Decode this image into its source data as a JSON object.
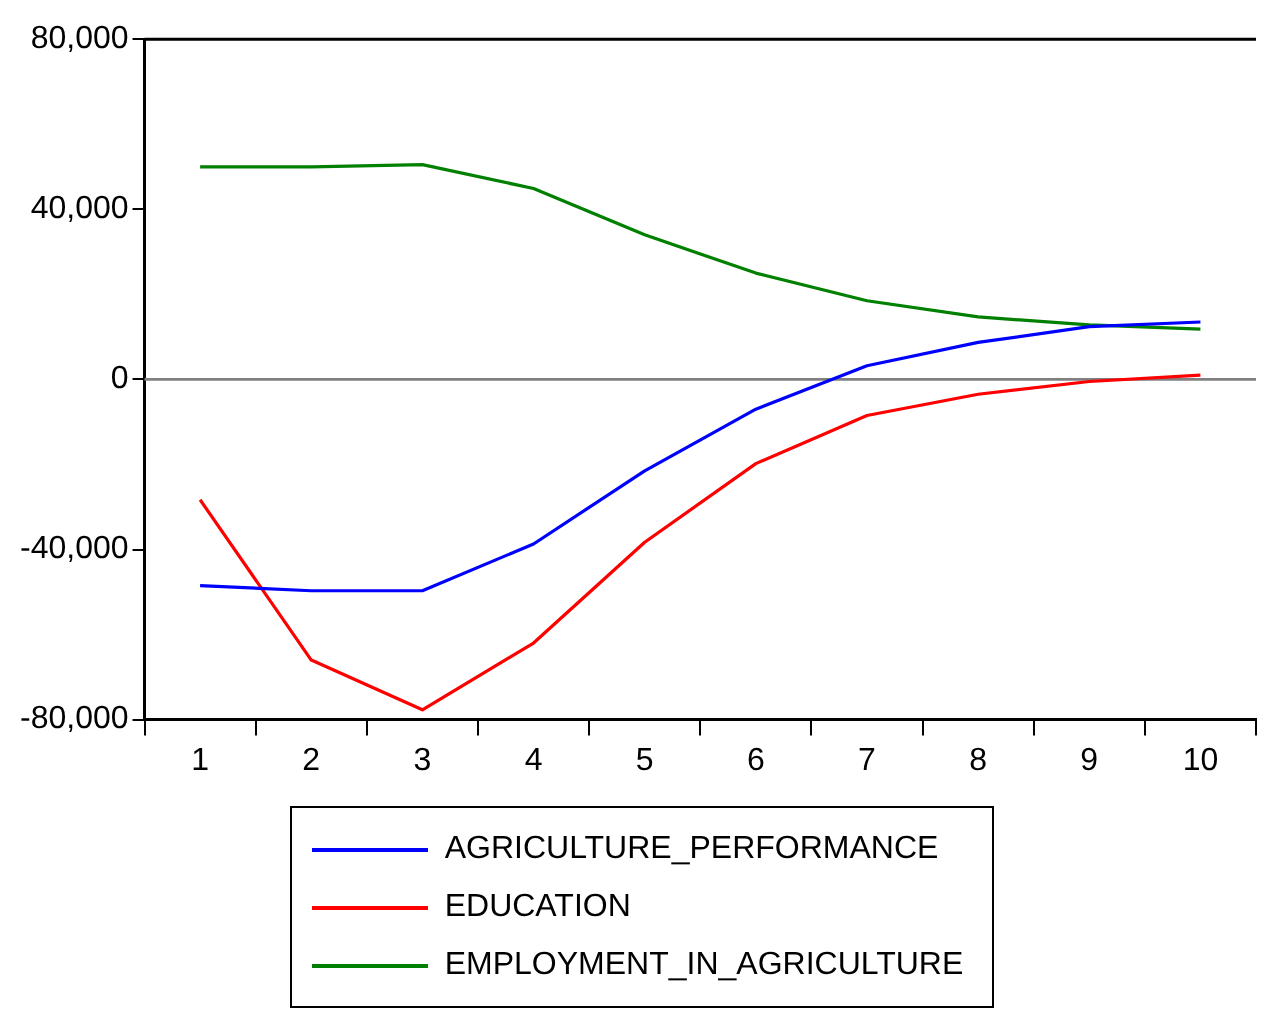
{
  "chart_data": {
    "type": "line",
    "categories": [
      "1",
      "2",
      "3",
      "4",
      "5",
      "6",
      "7",
      "8",
      "9",
      "10"
    ],
    "series": [
      {
        "name": "AGRICULTURE_PERFORMANCE",
        "color": "#0000ff",
        "values": [
          -48500,
          -49700,
          -49700,
          -38700,
          -21500,
          -7000,
          3200,
          8700,
          12400,
          13500
        ]
      },
      {
        "name": "EDUCATION",
        "color": "#ff0000",
        "values": [
          -28300,
          -66000,
          -77700,
          -62000,
          -38300,
          -19800,
          -8500,
          -3500,
          -500,
          1000
        ]
      },
      {
        "name": "EMPLOYMENT_IN_AGRICULTURE",
        "color": "#008000",
        "values": [
          50000,
          50000,
          50500,
          44900,
          34000,
          25000,
          18500,
          14700,
          12800,
          11800
        ]
      }
    ],
    "ylim": [
      -80000,
      80000
    ],
    "yticks": [
      {
        "value": -80000,
        "label": "-80,000"
      },
      {
        "value": -40000,
        "label": "-40,000"
      },
      0,
      {
        "value": 40000,
        "label": "40,000"
      },
      {
        "value": 80000,
        "label": "80,000"
      }
    ],
    "ref_lines": [
      {
        "axis": "y",
        "value": 0,
        "color": "#808080"
      }
    ],
    "grid": false,
    "legend": "bottom",
    "marker": "none",
    "line_style": "solid"
  }
}
